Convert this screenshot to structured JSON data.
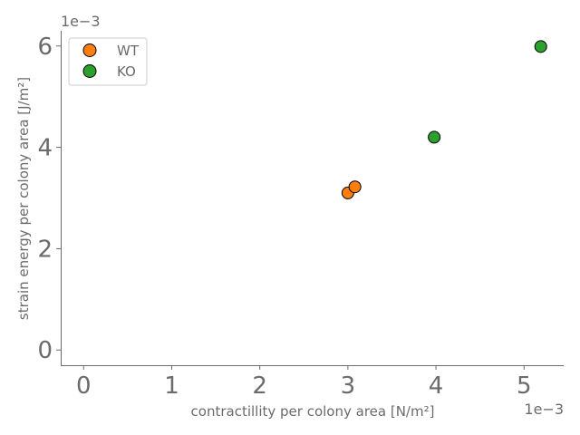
{
  "chart_data": {
    "type": "scatter",
    "title": "",
    "xlabel": "contractillity per colony area [N/m²]",
    "ylabel": "strain energy per colony area [J/m²]",
    "x_offset_label": "1e−3",
    "y_offset_label": "1e−3",
    "xlim": [
      -0.26,
      5.45
    ],
    "ylim": [
      -0.3,
      6.3
    ],
    "xticks": [
      0,
      1,
      2,
      3,
      4,
      5
    ],
    "yticks": [
      0,
      2,
      4,
      6
    ],
    "xtick_labels": [
      "0",
      "1",
      "2",
      "3",
      "4",
      "5"
    ],
    "ytick_labels": [
      "0",
      "2",
      "4",
      "6"
    ],
    "grid": false,
    "legend_position": "top-left",
    "series": [
      {
        "name": "WT",
        "color": "#ff7f0e",
        "points": [
          {
            "x": 3.0,
            "y": 3.1
          },
          {
            "x": 3.08,
            "y": 3.22
          }
        ]
      },
      {
        "name": "KO",
        "color": "#2ca02c",
        "points": [
          {
            "x": 3.98,
            "y": 4.2
          },
          {
            "x": 5.19,
            "y": 5.99
          }
        ]
      }
    ]
  }
}
